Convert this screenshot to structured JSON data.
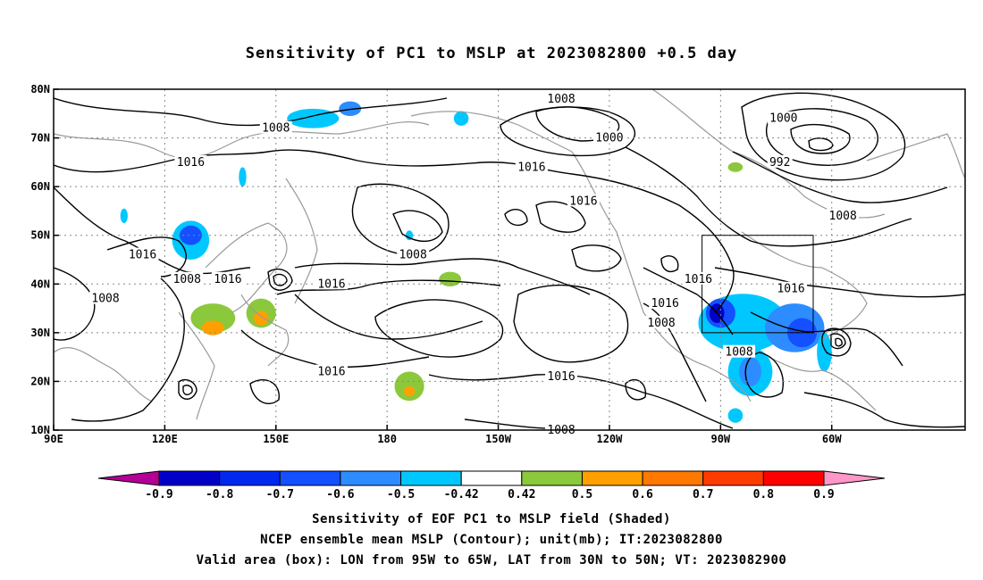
{
  "title": "Sensitivity of PC1 to MSLP at 2023082800 +0.5 day",
  "map": {
    "lon_ticks": [
      "90E",
      "120E",
      "150E",
      "180",
      "150W",
      "120W",
      "90W",
      "60W"
    ],
    "lat_ticks": [
      "80N",
      "70N",
      "60N",
      "50N",
      "40N",
      "30N",
      "20N",
      "10N"
    ],
    "contour_interval_labels": [
      "1008",
      "1000",
      "992",
      "1016"
    ],
    "contour_labels": [
      {
        "text": "1008",
        "lon": 150,
        "lat": 72
      },
      {
        "text": "1016",
        "lon": 127,
        "lat": 65
      },
      {
        "text": "1016",
        "lon": 114,
        "lat": 46
      },
      {
        "text": "1016",
        "lon": 137,
        "lat": 41
      },
      {
        "text": "1008",
        "lon": 126,
        "lat": 41
      },
      {
        "text": "1008",
        "lon": 104,
        "lat": 37
      },
      {
        "text": "1008",
        "lon": 187,
        "lat": 46
      },
      {
        "text": "1016",
        "lon": 165,
        "lat": 40
      },
      {
        "text": "1016",
        "lon": 165,
        "lat": 22
      },
      {
        "text": "1008",
        "lon": 227,
        "lat": 78
      },
      {
        "text": "1000",
        "lon": 240,
        "lat": 70
      },
      {
        "text": "1016",
        "lon": 219,
        "lat": 64
      },
      {
        "text": "1016",
        "lon": 233,
        "lat": 57
      },
      {
        "text": "1016",
        "lon": 227,
        "lat": 21
      },
      {
        "text": "1008",
        "lon": 227,
        "lat": 10
      },
      {
        "text": "1000",
        "lon": 287,
        "lat": 74
      },
      {
        "text": "992",
        "lon": 286,
        "lat": 65
      },
      {
        "text": "1008",
        "lon": 303,
        "lat": 54
      },
      {
        "text": "1016",
        "lon": 255,
        "lat": 36
      },
      {
        "text": "1008",
        "lon": 254,
        "lat": 32
      },
      {
        "text": "1016",
        "lon": 264,
        "lat": 41
      },
      {
        "text": "1016",
        "lon": 289,
        "lat": 39
      },
      {
        "text": "1008",
        "lon": 275,
        "lat": 26
      }
    ],
    "valid_box": {
      "lon_from": 265,
      "lon_to": 295,
      "lat_from": 30,
      "lat_to": 50
    }
  },
  "colorbar": {
    "labels": [
      "-0.9",
      "-0.8",
      "-0.7",
      "-0.6",
      "-0.5",
      "-0.42",
      "0.42",
      "0.5",
      "0.6",
      "0.7",
      "0.8",
      "0.9"
    ],
    "colors": [
      "#b40096",
      "#0000c8",
      "#0028f0",
      "#1450ff",
      "#2d8cff",
      "#00c8ff",
      "#ffffff",
      "#8cc83c",
      "#ffa000",
      "#ff7800",
      "#ff3c00",
      "#ff0000",
      "#ff96c8"
    ]
  },
  "captions": {
    "line1": "Sensitivity of EOF PC1 to MSLP field (Shaded)",
    "line2": "NCEP ensemble mean MSLP (Contour); unit(mb); IT:2023082800",
    "line3": "Valid area (box): LON from 95W to 65W, LAT from 30N to 50N; VT: 2023082900"
  },
  "shaded_areas": [
    {
      "color": "#00c8ff",
      "lon": 127,
      "lat": 49,
      "rx": 5,
      "ry": 4
    },
    {
      "color": "#1450ff",
      "lon": 127,
      "lat": 50,
      "rx": 3,
      "ry": 2
    },
    {
      "color": "#00c8ff",
      "lon": 160,
      "lat": 74,
      "rx": 7,
      "ry": 2
    },
    {
      "color": "#2d8cff",
      "lon": 170,
      "lat": 76,
      "rx": 3,
      "ry": 1.5
    },
    {
      "color": "#00c8ff",
      "lon": 200,
      "lat": 74,
      "rx": 2,
      "ry": 1.5
    },
    {
      "color": "#00c8ff",
      "lon": 141,
      "lat": 62,
      "rx": 1,
      "ry": 2
    },
    {
      "color": "#00c8ff",
      "lon": 109,
      "lat": 54,
      "rx": 1,
      "ry": 1.5
    },
    {
      "color": "#00c8ff",
      "lon": 186,
      "lat": 50,
      "rx": 1,
      "ry": 1
    },
    {
      "color": "#8cc83c",
      "lon": 133,
      "lat": 33,
      "rx": 6,
      "ry": 3
    },
    {
      "color": "#ffa000",
      "lon": 133,
      "lat": 31,
      "rx": 3,
      "ry": 1.5
    },
    {
      "color": "#8cc83c",
      "lon": 146,
      "lat": 34,
      "rx": 4,
      "ry": 3
    },
    {
      "color": "#ffa000",
      "lon": 146,
      "lat": 33,
      "rx": 2,
      "ry": 1.5
    },
    {
      "color": "#8cc83c",
      "lon": 186,
      "lat": 19,
      "rx": 4,
      "ry": 3
    },
    {
      "color": "#ffa000",
      "lon": 186,
      "lat": 18,
      "rx": 1.5,
      "ry": 1
    },
    {
      "color": "#8cc83c",
      "lon": 197,
      "lat": 41,
      "rx": 3,
      "ry": 1.5
    },
    {
      "color": "#8cc83c",
      "lon": 274,
      "lat": 64,
      "rx": 2,
      "ry": 1
    },
    {
      "color": "#00c8ff",
      "lon": 276,
      "lat": 32,
      "rx": 12,
      "ry": 6
    },
    {
      "color": "#1450ff",
      "lon": 270,
      "lat": 34,
      "rx": 4,
      "ry": 3
    },
    {
      "color": "#0000c8",
      "lon": 269,
      "lat": 34,
      "rx": 2,
      "ry": 2
    },
    {
      "color": "#2d8cff",
      "lon": 290,
      "lat": 31,
      "rx": 8,
      "ry": 5
    },
    {
      "color": "#1450ff",
      "lon": 292,
      "lat": 30,
      "rx": 4,
      "ry": 3
    },
    {
      "color": "#00c8ff",
      "lon": 278,
      "lat": 22,
      "rx": 6,
      "ry": 5
    },
    {
      "color": "#2d8cff",
      "lon": 278,
      "lat": 22,
      "rx": 3,
      "ry": 3
    },
    {
      "color": "#00c8ff",
      "lon": 274,
      "lat": 13,
      "rx": 2,
      "ry": 1.5
    },
    {
      "color": "#00c8ff",
      "lon": 298,
      "lat": 26,
      "rx": 2,
      "ry": 4
    }
  ]
}
